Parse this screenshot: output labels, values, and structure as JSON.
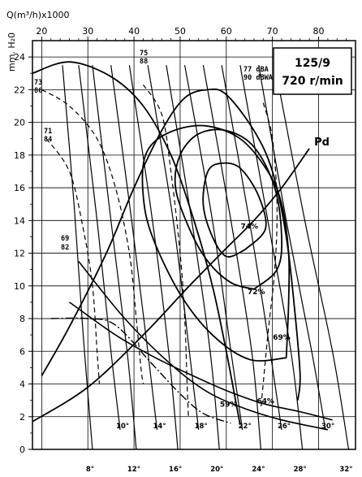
{
  "chart_data": {
    "type": "line",
    "top_axis_label": "Q(m³/h)x1000",
    "left_axis_label": "mm. H₂0",
    "x_range": [
      18,
      88
    ],
    "y_range": [
      0,
      25
    ],
    "x_ticks": [
      20,
      30,
      40,
      50,
      60,
      70,
      80
    ],
    "y_ticks": [
      0,
      2,
      4,
      6,
      8,
      10,
      12,
      14,
      16,
      18,
      20,
      22,
      24
    ],
    "grid": true,
    "info_box": {
      "line1": "125/9",
      "line2": "720 r/min",
      "placement": "top-right"
    },
    "blade_curves": [
      {
        "label": "8°",
        "points": [
          [
            24.5,
            23.5
          ],
          [
            27,
            15
          ],
          [
            29,
            7
          ],
          [
            31,
            0
          ]
        ]
      },
      {
        "label": "10°",
        "points": [
          [
            28,
            23.5
          ],
          [
            32,
            14
          ],
          [
            35,
            6
          ],
          [
            37,
            1.2
          ]
        ]
      },
      {
        "label": "12°",
        "points": [
          [
            31,
            23.5
          ],
          [
            35,
            14
          ],
          [
            38.5,
            6
          ],
          [
            40.5,
            0
          ]
        ]
      },
      {
        "label": "14°",
        "points": [
          [
            35,
            23.5
          ],
          [
            39.5,
            14
          ],
          [
            43,
            6
          ],
          [
            45,
            1.2
          ]
        ]
      },
      {
        "label": "16°",
        "points": [
          [
            39,
            23.5
          ],
          [
            44,
            14
          ],
          [
            47.5,
            6
          ],
          [
            49.5,
            0
          ]
        ]
      },
      {
        "label": "18°",
        "points": [
          [
            43,
            23.5
          ],
          [
            48.5,
            14
          ],
          [
            52,
            6
          ],
          [
            54,
            1.2
          ]
        ]
      },
      {
        "label": "20°",
        "points": [
          [
            47,
            23.5
          ],
          [
            52.5,
            14
          ],
          [
            56.5,
            6
          ],
          [
            58.5,
            0
          ]
        ]
      },
      {
        "label": "22°",
        "points": [
          [
            51,
            23.5
          ],
          [
            57,
            14
          ],
          [
            61,
            6
          ],
          [
            63.5,
            1.2
          ]
        ]
      },
      {
        "label": "24°",
        "points": [
          [
            55,
            23.5
          ],
          [
            61,
            14
          ],
          [
            65.5,
            6
          ],
          [
            67.5,
            0
          ]
        ]
      },
      {
        "label": "26°",
        "points": [
          [
            59,
            23.5
          ],
          [
            65,
            14
          ],
          [
            69.5,
            6
          ],
          [
            72,
            1.2
          ]
        ]
      },
      {
        "label": "28°",
        "points": [
          [
            63,
            23.5
          ],
          [
            69,
            14
          ],
          [
            74,
            6
          ],
          [
            76.5,
            0
          ]
        ]
      },
      {
        "label": "30°",
        "points": [
          [
            67,
            23.5
          ],
          [
            73,
            14
          ],
          [
            78.5,
            6
          ],
          [
            81.5,
            1.2
          ]
        ]
      },
      {
        "label": "32°",
        "points": [
          [
            70.5,
            23.5
          ],
          [
            77,
            14
          ],
          [
            83,
            6
          ],
          [
            86.5,
            0
          ]
        ]
      }
    ],
    "efficiency_contours": [
      {
        "label": "59%",
        "points": [
          [
            18,
            23
          ],
          [
            26,
            23.7
          ],
          [
            35,
            22.8
          ],
          [
            42,
            21
          ],
          [
            48,
            18
          ],
          [
            53,
            14
          ],
          [
            57,
            10
          ],
          [
            60,
            6
          ],
          [
            62,
            3
          ],
          [
            63,
            1.5
          ]
        ]
      },
      {
        "label": "64%",
        "points": [
          [
            20,
            4.5
          ],
          [
            26,
            7.5
          ],
          [
            34,
            12
          ],
          [
            40,
            16
          ],
          [
            46,
            19.5
          ],
          [
            51,
            21.5
          ],
          [
            56,
            22
          ],
          [
            60,
            21.7
          ],
          [
            66,
            19.5
          ],
          [
            70,
            17
          ],
          [
            73,
            13
          ],
          [
            75,
            8
          ],
          [
            76,
            4.5
          ],
          [
            75.5,
            3
          ]
        ]
      },
      {
        "label": "69%",
        "points": [
          [
            73,
            5.6
          ],
          [
            65,
            5.5
          ],
          [
            57,
            7
          ],
          [
            50,
            9.5
          ],
          [
            44,
            13
          ],
          [
            42,
            15.5
          ],
          [
            42.5,
            18
          ],
          [
            47,
            19.3
          ],
          [
            55,
            19.8
          ],
          [
            63,
            19
          ],
          [
            69,
            17
          ],
          [
            72,
            15
          ],
          [
            73.5,
            12
          ],
          [
            73.5,
            9
          ],
          [
            73,
            5.6
          ]
        ]
      },
      {
        "label": "72%",
        "points": [
          [
            66,
            9.8
          ],
          [
            61,
            10.2
          ],
          [
            56,
            11.5
          ],
          [
            52,
            13.5
          ],
          [
            49,
            16
          ],
          [
            50,
            18
          ],
          [
            54,
            19.3
          ],
          [
            60,
            19.5
          ],
          [
            66,
            18.5
          ],
          [
            70.5,
            16
          ],
          [
            72,
            13
          ],
          [
            71,
            11
          ],
          [
            66,
            9.8
          ]
        ]
      },
      {
        "label": "74%",
        "points": [
          [
            64,
            12.2
          ],
          [
            60,
            11.8
          ],
          [
            57,
            13
          ],
          [
            55,
            15
          ],
          [
            56,
            17
          ],
          [
            59,
            17.5
          ],
          [
            63,
            17.2
          ],
          [
            67,
            15.5
          ],
          [
            68.5,
            13.5
          ],
          [
            64,
            12.2
          ]
        ]
      }
    ],
    "pd_curve": {
      "label": "Pd",
      "points": [
        [
          18,
          1.7
        ],
        [
          30,
          3.8
        ],
        [
          42,
          7
        ],
        [
          52,
          10
        ],
        [
          60,
          12.3
        ],
        [
          66,
          14
        ],
        [
          72,
          16
        ],
        [
          78,
          18.4
        ]
      ]
    },
    "noise_curves": [
      {
        "label_dba": "73",
        "label_dbwa": "86",
        "points": [
          [
            20,
            22
          ],
          [
            26,
            21
          ],
          [
            32,
            19
          ],
          [
            36,
            16
          ],
          [
            39,
            12
          ],
          [
            40.5,
            8
          ],
          [
            41.5,
            5
          ],
          [
            42,
            4
          ]
        ]
      },
      {
        "label_dba": "71",
        "label_dbwa": "84",
        "points": [
          [
            21,
            19
          ],
          [
            26,
            17
          ],
          [
            29,
            13.5
          ],
          [
            31,
            10
          ],
          [
            32,
            6
          ],
          [
            32.5,
            4
          ]
        ]
      },
      {
        "label_dba": "75",
        "label_dbwa": "88",
        "points": [
          [
            42,
            22.3
          ],
          [
            46,
            20.5
          ],
          [
            48,
            17
          ],
          [
            50,
            12
          ],
          [
            51,
            8
          ],
          [
            51.5,
            4
          ],
          [
            51.8,
            2
          ]
        ]
      },
      {
        "label_dba": "77",
        "label_dbwa": "90",
        "label_suffix_dba": "dBA",
        "label_suffix_dbwa": "dBWA",
        "points": [
          [
            68,
            21.2
          ],
          [
            70,
            19
          ],
          [
            71,
            15
          ],
          [
            70.5,
            11
          ],
          [
            69,
            7
          ],
          [
            67.5,
            2.5
          ]
        ]
      }
    ],
    "resistance_curves": [
      {
        "points": [
          [
            26,
            9
          ],
          [
            36,
            7
          ],
          [
            44,
            5.7
          ],
          [
            52,
            4.6
          ],
          [
            60,
            3.6
          ],
          [
            68,
            2.8
          ],
          [
            76,
            2.3
          ],
          [
            83,
            1.8
          ]
        ]
      },
      {
        "points": [
          [
            28,
            11.5
          ],
          [
            38,
            8
          ],
          [
            48,
            5.2
          ],
          [
            56,
            3.5
          ],
          [
            64,
            2.5
          ],
          [
            72,
            1.8
          ],
          [
            82,
            1.2
          ]
        ]
      }
    ],
    "dash_dot_curve": {
      "points": [
        [
          22,
          8
        ],
        [
          30,
          8
        ],
        [
          36,
          7.6
        ],
        [
          44,
          5.2
        ],
        [
          50,
          3.4
        ],
        [
          55,
          2.2
        ],
        [
          61,
          1.6
        ]
      ]
    },
    "efficiency_label_positions": [
      {
        "label": "59%",
        "x": 60.5,
        "y": 2.6
      },
      {
        "label": "64%",
        "x": 68.5,
        "y": 2.8
      },
      {
        "label": "69%",
        "x": 72,
        "y": 6.7
      },
      {
        "label": "72%",
        "x": 66.5,
        "y": 9.5
      },
      {
        "label": "74%",
        "x": 65,
        "y": 13.5
      }
    ]
  }
}
